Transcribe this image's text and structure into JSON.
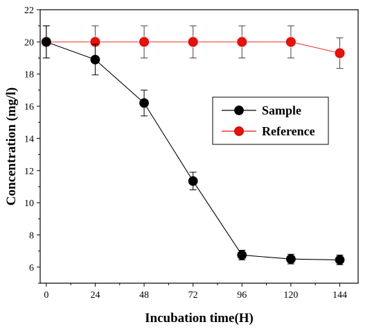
{
  "chart_data": {
    "type": "line",
    "xlabel": "Incubation time(H)",
    "ylabel": "Concentration (mg/l)",
    "xlim": [
      -3,
      153
    ],
    "ylim": [
      5,
      22
    ],
    "xticks": [
      0,
      24,
      48,
      72,
      96,
      120,
      144
    ],
    "yticks": [
      6,
      8,
      10,
      12,
      14,
      16,
      18,
      20,
      22
    ],
    "x": [
      0,
      24,
      48,
      72,
      96,
      120,
      144
    ],
    "legend": "center-right",
    "grid": false,
    "series": [
      {
        "name": "Sample",
        "color": "#000000",
        "values": [
          20.0,
          18.9,
          16.2,
          11.35,
          6.75,
          6.5,
          6.45
        ],
        "errors": [
          1.0,
          0.95,
          0.8,
          0.55,
          0.3,
          0.3,
          0.3
        ]
      },
      {
        "name": "Reference",
        "color": "#e8120c",
        "values": [
          20.0,
          20.0,
          20.0,
          20.0,
          20.0,
          20.0,
          19.3
        ],
        "errors": [
          1.0,
          1.0,
          1.0,
          1.0,
          1.0,
          1.0,
          0.95
        ]
      }
    ]
  }
}
